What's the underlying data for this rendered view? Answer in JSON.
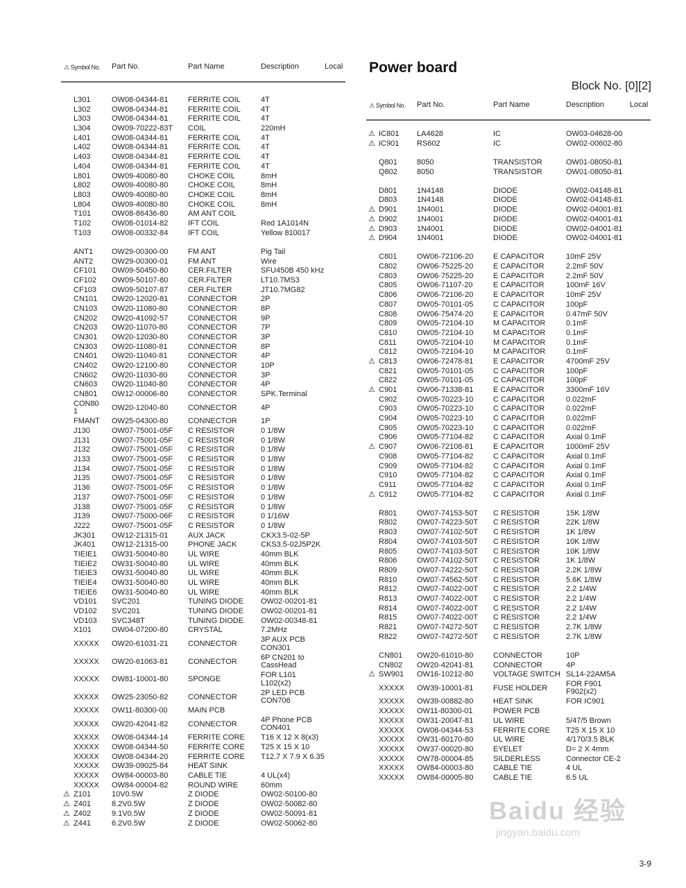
{
  "header": {
    "symbol": "Symbol No.",
    "part": "Part No.",
    "name": "Part Name",
    "desc": "Description",
    "local": "Local"
  },
  "title": "Power board",
  "block": "Block No. [0][2]",
  "page_number": "3-9",
  "watermark": {
    "logo": "Baidu 经验",
    "url": "jingyan.baidu.com"
  },
  "warning_icon": "caution-triangle",
  "left_groups": [
    [
      [
        "L301",
        "OW08-04344-81",
        "FERRITE COIL",
        "4T",
        0
      ],
      [
        "L302",
        "OW08-04344-81",
        "FERRITE COIL",
        "4T",
        0
      ],
      [
        "L303",
        "OW08-04344-81",
        "FERRITE COIL",
        "4T",
        0
      ],
      [
        "L304",
        "OW09-70222-83T",
        "COIL",
        "220mH",
        0
      ],
      [
        "L401",
        "OW08-04344-81",
        "FERRITE COIL",
        "4T",
        0
      ],
      [
        "L402",
        "OW08-04344-81",
        "FERRITE COIL",
        "4T",
        0
      ],
      [
        "L403",
        "OW08-04344-81",
        "FERRITE COIL",
        "4T",
        0
      ],
      [
        "L404",
        "OW08-04344-81",
        "FERRITE COIL",
        "4T",
        0
      ],
      [
        "L801",
        "OW09-40080-80",
        "CHOKE COIL",
        "8mH",
        0
      ],
      [
        "L802",
        "OW09-40080-80",
        "CHOKE COIL",
        "8mH",
        0
      ],
      [
        "L803",
        "OW09-40080-80",
        "CHOKE COIL",
        "8mH",
        0
      ],
      [
        "L804",
        "OW09-40080-80",
        "CHOKE COIL",
        "8mH",
        0
      ],
      [
        "T101",
        "OW08-86436-80",
        "AM ANT COIL",
        "",
        0
      ],
      [
        "T102",
        "OW08-01014-82",
        "IFT COIL",
        "Red 1A1014N",
        0
      ],
      [
        "T103",
        "OW08-00332-84",
        "IFT COIL",
        "Yellow 810017",
        0
      ]
    ],
    [
      [
        "ANT1",
        "OW29-00300-00",
        "FM ANT",
        "Pig Tail",
        0
      ],
      [
        "ANT2",
        "OW29-00300-01",
        "FM ANT",
        "Wire",
        0
      ],
      [
        "CF101",
        "OW09-50450-80",
        "CER.FILTER",
        "SFU450B 450 kHz",
        0
      ],
      [
        "CF102",
        "OW09-50107-80",
        "CER.FILTER",
        "LT10.7MS3",
        0
      ],
      [
        "CF103",
        "OW09-50107-87",
        "CER.FILTER",
        "JT10.7MG82",
        0
      ],
      [
        "CN101",
        "OW20-12020-81",
        "CONNECTOR",
        "2P",
        0
      ],
      [
        "CN103",
        "OW20-11080-80",
        "CONNECTOR",
        "8P",
        0
      ],
      [
        "CN202",
        "OW20-41092-57",
        "CONNECTOR",
        "9P",
        0
      ],
      [
        "CN203",
        "OW20-11070-80",
        "CONNECTOR",
        "7P",
        0
      ],
      [
        "CN301",
        "OW20-12030-80",
        "CONNECTOR",
        "3P",
        0
      ],
      [
        "CN303",
        "OW20-11080-81",
        "CONNECTOR",
        "8P",
        0
      ],
      [
        "CN401",
        "OW20-11040-81",
        "CONNECTOR",
        "4P",
        0
      ],
      [
        "CN402",
        "OW20-12100-80",
        "CONNECTOR",
        "10P",
        0
      ],
      [
        "CN602",
        "OW20-11030-80",
        "CONNECTOR",
        "3P",
        0
      ],
      [
        "CN603",
        "OW20-11040-80",
        "CONNECTOR",
        "4P",
        0
      ],
      [
        "CN801",
        "OW12-00006-80",
        "CONNECTOR",
        "SPK.Terminal",
        0
      ],
      [
        "CON80\n1",
        "OW20-12040-80",
        "CONNECTOR",
        "4P",
        0
      ],
      [
        "FMANT",
        "OW25-04300-80",
        "CONNECTOR",
        "1P",
        0
      ],
      [
        "J130",
        "OW07-75001-05F",
        "C RESISTOR",
        "0 1/8W",
        0
      ],
      [
        "J131",
        "OW07-75001-05F",
        "C RESISTOR",
        "0 1/8W",
        0
      ],
      [
        "J132",
        "OW07-75001-05F",
        "C RESISTOR",
        "0 1/8W",
        0
      ],
      [
        "J133",
        "OW07-75001-05F",
        "C RESISTOR",
        "0 1/8W",
        0
      ],
      [
        "J134",
        "OW07-75001-05F",
        "C RESISTOR",
        "0 1/8W",
        0
      ],
      [
        "J135",
        "OW07-75001-05F",
        "C RESISTOR",
        "0 1/8W",
        0
      ],
      [
        "J136",
        "OW07-75001-05F",
        "C RESISTOR",
        "0 1/8W",
        0
      ],
      [
        "J137",
        "OW07-75001-05F",
        "C RESISTOR",
        "0 1/8W",
        0
      ],
      [
        "J138",
        "OW07-75001-05F",
        "C RESISTOR",
        "0 1/8W",
        0
      ],
      [
        "J139",
        "OW07-75000-06F",
        "C RESISTOR",
        "0 1/16W",
        0
      ],
      [
        "J222",
        "OW07-75001-05F",
        "C RESISTOR",
        "0 1/8W",
        0
      ],
      [
        "JK301",
        "OW12-21315-01",
        "AUX JACK",
        "CKX3.5-02-5P",
        0
      ],
      [
        "JK401",
        "OW12-21315-00",
        "PHONE JACK",
        "CKS3.5-02J5P2K",
        0
      ],
      [
        "TIEIE1",
        "OW31-50040-80",
        "UL WIRE",
        "40mm BLK",
        0
      ],
      [
        "TIEIE2",
        "OW31-50040-80",
        "UL WIRE",
        "40mm BLK",
        0
      ],
      [
        "TIEIE3",
        "OW31-50040-80",
        "UL WIRE",
        "40mm BLK",
        0
      ],
      [
        "TIEIE4",
        "OW31-50040-80",
        "UL WIRE",
        "40mm BLK",
        0
      ],
      [
        "TIEIE6",
        "OW31-50040-80",
        "UL WIRE",
        "40mm BLK",
        0
      ],
      [
        "VD101",
        "SVC201",
        "TUNING DIODE",
        "OW02-00201-81",
        0
      ],
      [
        "VD102",
        "SVC201",
        "TUNING DIODE",
        "OW02-00201-81",
        0
      ],
      [
        "VD103",
        "SVC348T",
        "TUNING DIODE",
        "OW02-00348-81",
        0
      ],
      [
        "X101",
        "OW04-07200-80",
        "CRYSTAL",
        "7.2MHz",
        0
      ],
      [
        "XXXXX",
        "OW20-61031-21",
        "CONNECTOR",
        "3P AUX PCB\nCON301",
        0
      ],
      [
        "XXXXX",
        "OW20-61063-81",
        "CONNECTOR",
        "6P CN201 to\nCassHead",
        0
      ],
      [
        "XXXXX",
        "OW81-10001-80",
        "SPONGE",
        "FOR L101\nL102(x2)",
        0
      ],
      [
        "XXXXX",
        "OW25-23050-82",
        "CONNECTOR",
        "2P LED PCB\nCON706",
        0
      ],
      [
        "XXXXX",
        "OW11-80300-00",
        "MAIN PCB",
        "",
        0
      ],
      [
        "XXXXX",
        "OW20-42041-82",
        "CONNECTOR",
        "4P Phone PCB\nCON401",
        0
      ],
      [
        "XXXXX",
        "OW08-04344-14",
        "FERRITE CORE",
        "T16 X 12  X 8(x3)",
        0
      ],
      [
        "XXXXX",
        "OW08-04344-50",
        "FERRITE CORE",
        "T25 X 15 X 10",
        0
      ],
      [
        "XXXXX",
        "OW08-04344-20",
        "FERRITE CORE",
        "T12.7 X 7.9 X 6.35",
        0
      ],
      [
        "XXXXX",
        "OW39-09025-84",
        "HEAT SINK",
        "",
        0
      ],
      [
        "XXXXX",
        "OW84-00003-80",
        "CABLE TIE",
        "4 UL(x4)",
        0
      ],
      [
        "XXXXX",
        "OW84-00004-82",
        "ROUND WIRE",
        "60mm",
        0
      ],
      [
        "Z101",
        "10V0.5W",
        "Z DIODE",
        "OW02-50100-80",
        1
      ],
      [
        "Z401",
        "8.2V0.5W",
        "Z DIODE",
        "OW02-50082-80",
        1
      ],
      [
        "Z402",
        "9.1V0.5W",
        "Z DIODE",
        "OW02-50091-81",
        1
      ],
      [
        "Z441",
        "6.2V0.5W",
        "Z DIODE",
        "OW02-50062-80",
        1
      ]
    ]
  ],
  "right_groups": [
    [
      [
        "IC801",
        "LA4628",
        "IC",
        "OW03-04628-00",
        1
      ],
      [
        "IC901",
        "RS602",
        "IC",
        "OW02-00602-80",
        1
      ]
    ],
    [
      [
        "Q801",
        "8050",
        "TRANSISTOR",
        "OW01-08050-81",
        0
      ],
      [
        "Q802",
        "8050",
        "TRANSISTOR",
        "OW01-08050-81",
        0
      ]
    ],
    [
      [
        "D801",
        "1N4148",
        "DIODE",
        "OW02-04148-81",
        0
      ],
      [
        "D803",
        "1N4148",
        "DIODE",
        "OW02-04148-81",
        0
      ],
      [
        "D901",
        "1N4001",
        "DIODE",
        "OW02-04001-81",
        1
      ],
      [
        "D902",
        "1N4001",
        "DIODE",
        "OW02-04001-81",
        1
      ],
      [
        "D903",
        "1N4001",
        "DIODE",
        "OW02-04001-81",
        1
      ],
      [
        "D904",
        "1N4001",
        "DIODE",
        "OW02-04001-81",
        1
      ]
    ],
    [
      [
        "C801",
        "OW06-72106-20",
        "E CAPACITOR",
        "10mF 25V",
        0
      ],
      [
        "C802",
        "OW06-75225-20",
        "E CAPACITOR",
        "2.2mF 50V",
        0
      ],
      [
        "C803",
        "OW06-75225-20",
        "E CAPACITOR",
        "2.2mF 50V",
        0
      ],
      [
        "C805",
        "OW06-71107-20",
        "E CAPACITOR",
        "100mF 16V",
        0
      ],
      [
        "C806",
        "OW06-72106-20",
        "E CAPACITOR",
        "10mF 25V",
        0
      ],
      [
        "C807",
        "OW05-70101-05",
        "C CAPACITOR",
        "100pF",
        0
      ],
      [
        "C808",
        "OW06-75474-20",
        "E CAPACITOR",
        "0.47mF 50V",
        0
      ],
      [
        "C809",
        "OW05-72104-10",
        "M CAPACITOR",
        "0.1mF",
        0
      ],
      [
        "C810",
        "OW05-72104-10",
        "M CAPACITOR",
        "0.1mF",
        0
      ],
      [
        "C811",
        "OW05-72104-10",
        "M CAPACITOR",
        "0.1mF",
        0
      ],
      [
        "C812",
        "OW05-72104-10",
        "M CAPACITOR",
        "0.1mF",
        0
      ],
      [
        "C813",
        "OW06-72478-81",
        "E CAPACITOR",
        "4700mF 25V",
        1
      ],
      [
        "C821",
        "OW05-70101-05",
        "C CAPACITOR",
        "100pF",
        0
      ],
      [
        "C822",
        "OW05-70101-05",
        "C CAPACITOR",
        "100pF",
        0
      ],
      [
        "C901",
        "OW06-71338-81",
        "E CAPACITOR",
        "3300mF 16V",
        1
      ],
      [
        "C902",
        "OW05-70223-10",
        "C CAPACITOR",
        "0.022mF",
        0
      ],
      [
        "C903",
        "OW05-70223-10",
        "C CAPACITOR",
        "0.022mF",
        0
      ],
      [
        "C904",
        "OW05-70223-10",
        "C CAPACITOR",
        "0.022mF",
        0
      ],
      [
        "C905",
        "OW05-70223-10",
        "C CAPACITOR",
        "0.022mF",
        0
      ],
      [
        "C906",
        "OW05-77104-82",
        "C CAPACITOR",
        "Axial 0.1mF",
        0
      ],
      [
        "C907",
        "OW06-72108-81",
        "E CAPACITOR",
        "1000mF 25V",
        1
      ],
      [
        "C908",
        "OW05-77104-82",
        "C CAPACITOR",
        "Axial 0.1mF",
        0
      ],
      [
        "C909",
        "OW05-77104-82",
        "C CAPACITOR",
        "Axial 0.1mF",
        0
      ],
      [
        "C910",
        "OW05-77104-82",
        "C CAPACITOR",
        "Axial 0.1mF",
        0
      ],
      [
        "C911",
        "OW05-77104-82",
        "C CAPACITOR",
        "Axial 0.1mF",
        0
      ],
      [
        "C912",
        "OW05-77104-82",
        "C CAPACITOR",
        "Axial 0.1mF",
        1
      ]
    ],
    [
      [
        "R801",
        "OW07-74153-50T",
        "C RESISTOR",
        "15K 1/8W",
        0
      ],
      [
        "R802",
        "OW07-74223-50T",
        "C RESISTOR",
        "22K 1/8W",
        0
      ],
      [
        "R803",
        "OW07-74102-50T",
        "C RESISTOR",
        "1K 1/8W",
        0
      ],
      [
        "R804",
        "OW07-74103-50T",
        "C RESISTOR",
        "10K 1/8W",
        0
      ],
      [
        "R805",
        "OW07-74103-50T",
        "C RESISTOR",
        "10K 1/8W",
        0
      ],
      [
        "R806",
        "OW07-74102-50T",
        "C RESISTOR",
        "1K 1/8W",
        0
      ],
      [
        "R809",
        "OW07-74222-50T",
        "C RESISTOR",
        "2.2K 1/8W",
        0
      ],
      [
        "R810",
        "OW07-74562-50T",
        "C RESISTOR",
        "5.6K 1/8W",
        0
      ],
      [
        "R812",
        "OW07-74022-00T",
        "C RESISTOR",
        "2.2 1/4W",
        0
      ],
      [
        "R813",
        "OW07-74022-00T",
        "C RESISTOR",
        "2.2 1/4W",
        0
      ],
      [
        "R814",
        "OW07-74022-00T",
        "C RESISTOR",
        "2.2 1/4W",
        0
      ],
      [
        "R815",
        "OW07-74022-00T",
        "C RESISTOR",
        "2.2 1/4W",
        0
      ],
      [
        "R821",
        "OW07-74272-50T",
        "C RESISTOR",
        "2.7K 1/8W",
        0
      ],
      [
        "R822",
        "OW07-74272-50T",
        "C RESISTOR",
        "2.7K 1/8W",
        0
      ]
    ],
    [
      [
        "CN801",
        "OW20-61010-80",
        "CONNECTOR",
        "10P",
        0
      ],
      [
        "CN802",
        "OW20-42041-81",
        "CONNECTOR",
        "4P",
        0
      ],
      [
        "SW901",
        "OW16-10212-80",
        "VOLTAGE SWITCH",
        "SL14-22AM5A",
        1
      ],
      [
        "XXXXX",
        "OW39-10001-81",
        "FUSE HOLDER",
        "FOR F901\nF902(x2)",
        0
      ],
      [
        "XXXXX",
        "OW39-00882-80",
        "HEAT SINK",
        "FOR IC901",
        0
      ],
      [
        "XXXXX",
        "OW11-80300-01",
        "POWER PCB",
        "",
        0
      ],
      [
        "XXXXX",
        "OW31-20047-81",
        "UL WIRE",
        "5/47/5 Brown",
        0
      ],
      [
        "XXXXX",
        "OW08-04344-53",
        "FERRITE CORE",
        "T25 X 15 X 10",
        0
      ],
      [
        "XXXXX",
        "OW31-60170-80",
        "UL WIRE",
        "4/170/3.5 BLK",
        0
      ],
      [
        "XXXXX",
        "OW37-00020-80",
        "EYELET",
        "D= 2 X 4mm",
        0
      ],
      [
        "XXXXX",
        "OW78-00004-85",
        "SILDERLESS",
        "Connector CE-2",
        0
      ],
      [
        "XXXXX",
        "OW84-00003-80",
        "CABLE TIE",
        "4 UL",
        0
      ],
      [
        "XXXXX",
        "OW84-00005-80",
        "CABLE TIE",
        "6.5 UL",
        0
      ]
    ]
  ]
}
